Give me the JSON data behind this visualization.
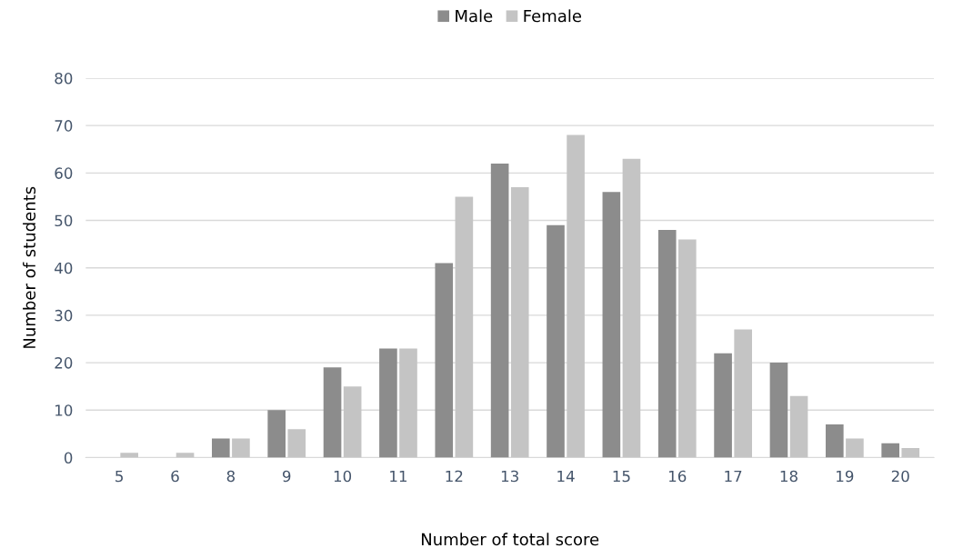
{
  "chart_data": {
    "type": "bar",
    "xlabel": "Number of total score",
    "ylabel": "Number of students",
    "categories": [
      "5",
      "6",
      "8",
      "9",
      "10",
      "11",
      "12",
      "13",
      "14",
      "15",
      "16",
      "17",
      "18",
      "19",
      "20"
    ],
    "series": [
      {
        "name": "Male",
        "color": "#8c8c8c",
        "values": [
          0,
          0,
          4,
          10,
          19,
          23,
          41,
          62,
          49,
          56,
          48,
          22,
          20,
          7,
          3
        ]
      },
      {
        "name": "Female",
        "color": "#c4c4c4",
        "values": [
          1,
          1,
          4,
          6,
          15,
          23,
          55,
          57,
          68,
          63,
          46,
          27,
          13,
          4,
          2
        ]
      }
    ],
    "ylim": [
      0,
      80
    ],
    "yticks": [
      0,
      10,
      20,
      30,
      40,
      50,
      60,
      70,
      80
    ],
    "grid": "y",
    "legend": "top"
  }
}
